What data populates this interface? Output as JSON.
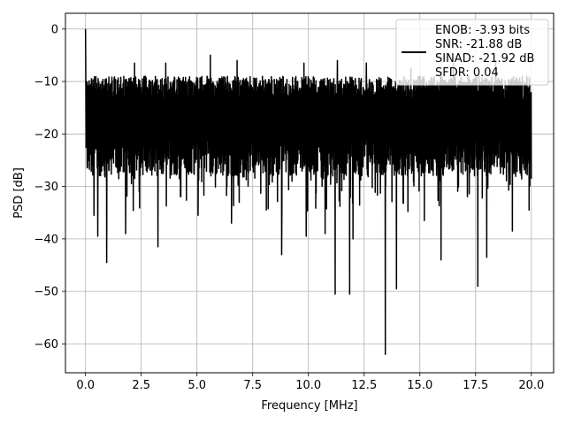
{
  "chart_data": {
    "type": "line",
    "title": "",
    "xlabel": "Frequency [MHz]",
    "ylabel": "PSD [dB]",
    "xlim": [
      -0.9,
      21.0
    ],
    "ylim": [
      -65.5,
      3.0
    ],
    "xticks": [
      0.0,
      2.5,
      5.0,
      7.5,
      10.0,
      12.5,
      15.0,
      17.5,
      20.0
    ],
    "xtick_labels": [
      "0.0",
      "2.5",
      "5.0",
      "7.5",
      "10.0",
      "12.5",
      "15.0",
      "17.5",
      "20.0"
    ],
    "yticks": [
      0,
      -10,
      -20,
      -30,
      -40,
      -50,
      -60
    ],
    "ytick_labels": [
      "0",
      "−10",
      "−20",
      "−30",
      "−40",
      "−50",
      "−60"
    ],
    "grid": true,
    "legend_position": "top-right",
    "legend_entries": [
      "ENOB: -3.93 bits",
      "SNR: -21.88 dB",
      "SINAD: -21.92 dB",
      "SFDR: 0.04"
    ],
    "series_color": "#000000",
    "series": [
      {
        "x_range": [
          0.0,
          20.0
        ],
        "peak": {
          "x": 0.0,
          "y": 0.0
        },
        "noise_band_db": [
          -28.0,
          -9.0
        ],
        "typical_level_db": -19.0,
        "notable_dips": [
          {
            "x": 0.38,
            "y": -35.5
          },
          {
            "x": 0.55,
            "y": -39.5
          },
          {
            "x": 0.95,
            "y": -44.5
          },
          {
            "x": 1.8,
            "y": -39.0
          },
          {
            "x": 3.25,
            "y": -41.5
          },
          {
            "x": 5.05,
            "y": -35.5
          },
          {
            "x": 6.55,
            "y": -37.0
          },
          {
            "x": 8.8,
            "y": -43.0
          },
          {
            "x": 9.9,
            "y": -39.5
          },
          {
            "x": 10.75,
            "y": -39.0
          },
          {
            "x": 11.2,
            "y": -50.5
          },
          {
            "x": 11.85,
            "y": -50.5
          },
          {
            "x": 12.0,
            "y": -40.0
          },
          {
            "x": 13.45,
            "y": -62.0
          },
          {
            "x": 13.95,
            "y": -49.5
          },
          {
            "x": 15.2,
            "y": -36.5
          },
          {
            "x": 15.95,
            "y": -44.0
          },
          {
            "x": 17.6,
            "y": -49.0
          },
          {
            "x": 18.0,
            "y": -43.5
          },
          {
            "x": 19.15,
            "y": -38.5
          },
          {
            "x": 19.9,
            "y": -34.5
          }
        ],
        "notable_peaks": [
          {
            "x": 0.01,
            "y": -7.0
          },
          {
            "x": 2.2,
            "y": -6.5
          },
          {
            "x": 3.6,
            "y": -6.5
          },
          {
            "x": 5.6,
            "y": -5.0
          },
          {
            "x": 6.8,
            "y": -6.0
          },
          {
            "x": 9.8,
            "y": -6.5
          },
          {
            "x": 11.3,
            "y": -6.0
          },
          {
            "x": 12.6,
            "y": -6.5
          },
          {
            "x": 14.6,
            "y": -7.5
          },
          {
            "x": 16.5,
            "y": -6.5
          },
          {
            "x": 18.4,
            "y": -6.0
          }
        ]
      }
    ]
  }
}
